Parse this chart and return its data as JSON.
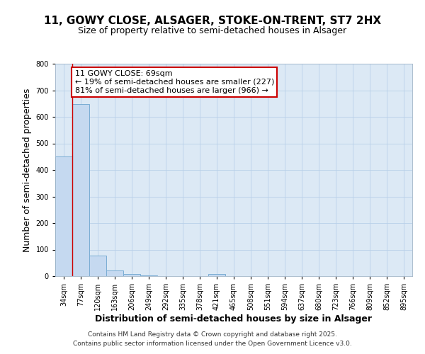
{
  "title": "11, GOWY CLOSE, ALSAGER, STOKE-ON-TRENT, ST7 2HX",
  "subtitle": "Size of property relative to semi-detached houses in Alsager",
  "xlabel": "Distribution of semi-detached houses by size in Alsager",
  "ylabel": "Number of semi-detached properties",
  "bar_categories": [
    "34sqm",
    "77sqm",
    "120sqm",
    "163sqm",
    "206sqm",
    "249sqm",
    "292sqm",
    "335sqm",
    "378sqm",
    "421sqm",
    "465sqm",
    "508sqm",
    "551sqm",
    "594sqm",
    "637sqm",
    "680sqm",
    "723sqm",
    "766sqm",
    "809sqm",
    "852sqm",
    "895sqm"
  ],
  "bar_values": [
    450,
    648,
    78,
    22,
    8,
    3,
    0,
    0,
    0,
    8,
    0,
    0,
    0,
    0,
    0,
    0,
    0,
    0,
    0,
    0,
    0
  ],
  "bar_color": "#c5d9f0",
  "bar_edge_color": "#7aadd4",
  "property_line_x": 0.5,
  "annotation_text": "11 GOWY CLOSE: 69sqm\n← 19% of semi-detached houses are smaller (227)\n81% of semi-detached houses are larger (966) →",
  "annotation_box_color": "#ffffff",
  "annotation_box_edge": "#cc0000",
  "vline_color": "#cc0000",
  "ylim": [
    0,
    800
  ],
  "yticks": [
    0,
    100,
    200,
    300,
    400,
    500,
    600,
    700,
    800
  ],
  "bg_color": "#ffffff",
  "plot_bg_color": "#dce9f5",
  "grid_color": "#b8cfe8",
  "footer_line1": "Contains HM Land Registry data © Crown copyright and database right 2025.",
  "footer_line2": "Contains public sector information licensed under the Open Government Licence v3.0.",
  "title_fontsize": 11,
  "subtitle_fontsize": 9,
  "axis_label_fontsize": 9,
  "tick_fontsize": 7,
  "annotation_fontsize": 8,
  "footer_fontsize": 6.5
}
